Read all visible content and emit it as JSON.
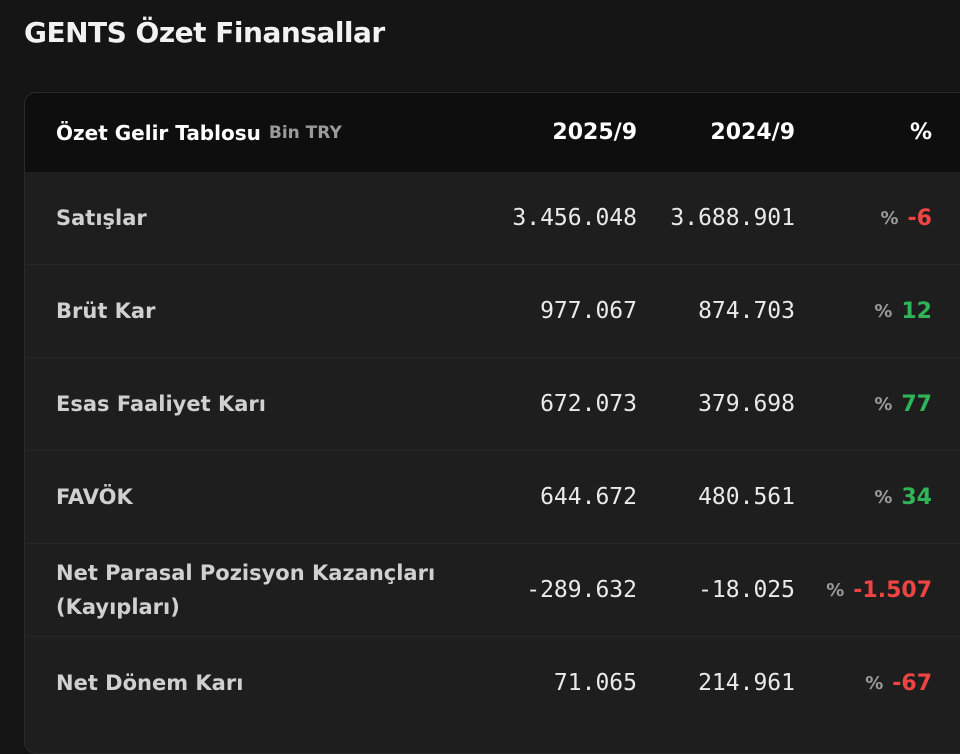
{
  "page_title": "GENTS Özet Finansallar",
  "table": {
    "title": "Özet Gelir Tablosu",
    "unit": "Bin TRY",
    "columns": [
      "2025/9",
      "2024/9",
      "%"
    ],
    "rows": [
      {
        "label": "Satışlar",
        "v1": "3.456.048",
        "v2": "3.688.901",
        "pct_sign": "%",
        "pct": "-6",
        "trend": "negative"
      },
      {
        "label": "Brüt Kar",
        "v1": "977.067",
        "v2": "874.703",
        "pct_sign": "%",
        "pct": "12",
        "trend": "positive"
      },
      {
        "label": "Esas Faaliyet Karı",
        "v1": "672.073",
        "v2": "379.698",
        "pct_sign": "%",
        "pct": "77",
        "trend": "positive"
      },
      {
        "label": "FAVÖK",
        "v1": "644.672",
        "v2": "480.561",
        "pct_sign": "%",
        "pct": "34",
        "trend": "positive"
      },
      {
        "label": "Net Parasal Pozisyon Kazançları (Kayıpları)",
        "v1": "-289.632",
        "v2": "-18.025",
        "pct_sign": "%",
        "pct": "-1.507",
        "trend": "negative"
      },
      {
        "label": "Net Dönem Karı",
        "v1": "71.065",
        "v2": "214.961",
        "pct_sign": "%",
        "pct": "-67",
        "trend": "negative"
      }
    ]
  },
  "colors": {
    "positive": "#2fb457",
    "negative": "#ef4444"
  }
}
